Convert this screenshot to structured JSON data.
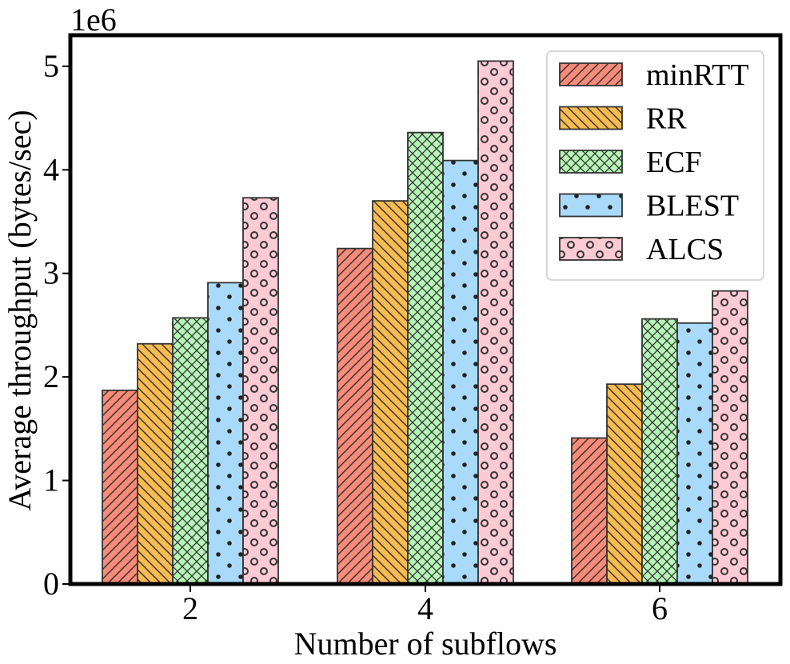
{
  "chart_data": {
    "type": "bar",
    "title": "",
    "xlabel": "Number of subflows",
    "ylabel": "Average throughput (bytes/sec)",
    "y_multiplier_label": "1e6",
    "categories": [
      "2",
      "4",
      "6"
    ],
    "ylim": [
      0,
      5.3
    ],
    "yticks": [
      0,
      1,
      2,
      3,
      4,
      5
    ],
    "ytick_labels": [
      "0",
      "1",
      "2",
      "3",
      "4",
      "5"
    ],
    "grid": false,
    "legend_position": "top-right",
    "series": [
      {
        "name": "minRTT",
        "values": [
          1.87,
          3.24,
          1.41
        ],
        "color": "#fa8b78",
        "pattern": "diagonal-forward"
      },
      {
        "name": "RR",
        "values": [
          2.32,
          3.7,
          1.93
        ],
        "color": "#fbbb4f",
        "pattern": "diagonal-back"
      },
      {
        "name": "ECF",
        "values": [
          2.57,
          4.36,
          2.56
        ],
        "color": "#b6f6b6",
        "pattern": "crosshatch"
      },
      {
        "name": "BLEST",
        "values": [
          2.91,
          4.09,
          2.52
        ],
        "color": "#a9daf9",
        "pattern": "dots"
      },
      {
        "name": "ALCS",
        "values": [
          3.73,
          5.05,
          2.83
        ],
        "color": "#fecbd5",
        "pattern": "circles"
      }
    ]
  }
}
